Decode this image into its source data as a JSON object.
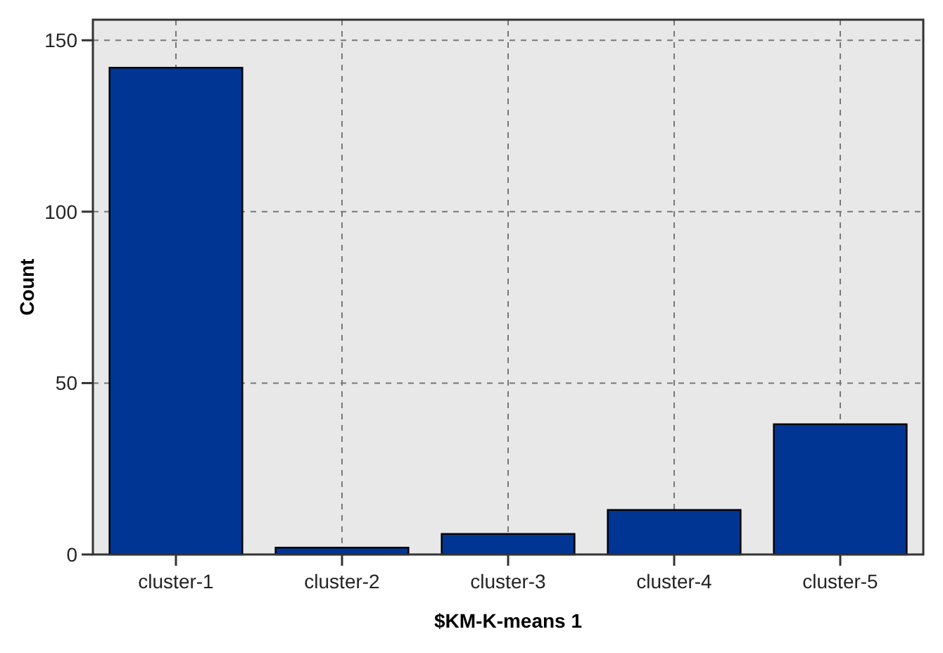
{
  "chart_data": {
    "type": "bar",
    "xlabel": "$KM-K-means 1",
    "ylabel": "Count",
    "categories": [
      "cluster-1",
      "cluster-2",
      "cluster-3",
      "cluster-4",
      "cluster-5"
    ],
    "values": [
      142,
      2,
      6,
      13,
      38
    ],
    "color": "#003594",
    "ylim": [
      0,
      156
    ],
    "yticks": [
      0,
      50,
      100,
      150
    ],
    "grid": true
  }
}
